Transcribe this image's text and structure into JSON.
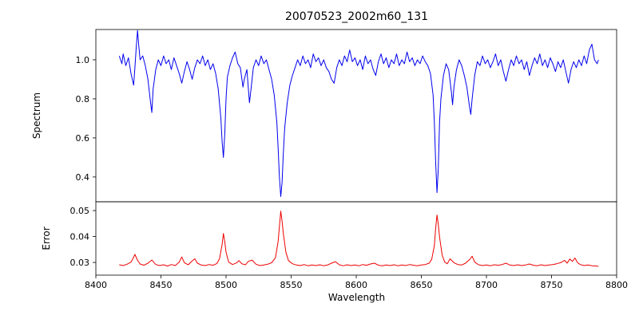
{
  "title": "20070523_2002m60_131",
  "xaxis": {
    "label": "Wavelength",
    "lim": [
      8400,
      8800
    ],
    "ticks": [
      {
        "v": 8400,
        "t": "8400"
      },
      {
        "v": 8450,
        "t": "8450"
      },
      {
        "v": 8500,
        "t": "8500"
      },
      {
        "v": 8550,
        "t": "8550"
      },
      {
        "v": 8600,
        "t": "8600"
      },
      {
        "v": 8650,
        "t": "8650"
      },
      {
        "v": 8700,
        "t": "8700"
      },
      {
        "v": 8750,
        "t": "8750"
      },
      {
        "v": 8800,
        "t": "8800"
      }
    ]
  },
  "colors": {
    "axis": "#000000",
    "background": "#ffffff"
  },
  "chart_data": [
    {
      "type": "line",
      "name": "spectrum",
      "ylabel": "Spectrum",
      "color": "#0000ee",
      "grid": false,
      "legend": "none",
      "xlim": [
        8400,
        8800
      ],
      "ylim": [
        0.273,
        1.155
      ],
      "yticks": [
        {
          "v": 0.4,
          "t": "0.4"
        },
        {
          "v": 0.6,
          "t": "0.6"
        },
        {
          "v": 0.8,
          "t": "0.8"
        },
        {
          "v": 1.0,
          "t": "1.0"
        }
      ],
      "points": [
        [
          8418,
          1.02
        ],
        [
          8420,
          0.98
        ],
        [
          8421,
          1.03
        ],
        [
          8423,
          0.97
        ],
        [
          8425,
          1.01
        ],
        [
          8427,
          0.93
        ],
        [
          8429,
          0.87
        ],
        [
          8430,
          0.96
        ],
        [
          8431,
          1.06
        ],
        [
          8432,
          1.15
        ],
        [
          8433,
          1.07
        ],
        [
          8434,
          1.0
        ],
        [
          8436,
          1.02
        ],
        [
          8438,
          0.97
        ],
        [
          8440,
          0.9
        ],
        [
          8442,
          0.78
        ],
        [
          8443,
          0.73
        ],
        [
          8444,
          0.85
        ],
        [
          8446,
          0.95
        ],
        [
          8448,
          1.0
        ],
        [
          8450,
          0.97
        ],
        [
          8452,
          1.02
        ],
        [
          8454,
          0.98
        ],
        [
          8456,
          1.0
        ],
        [
          8458,
          0.95
        ],
        [
          8460,
          1.01
        ],
        [
          8462,
          0.97
        ],
        [
          8464,
          0.93
        ],
        [
          8466,
          0.88
        ],
        [
          8468,
          0.94
        ],
        [
          8470,
          0.99
        ],
        [
          8472,
          0.95
        ],
        [
          8474,
          0.9
        ],
        [
          8476,
          0.96
        ],
        [
          8478,
          1.0
        ],
        [
          8480,
          0.98
        ],
        [
          8482,
          1.02
        ],
        [
          8484,
          0.97
        ],
        [
          8486,
          1.0
        ],
        [
          8488,
          0.95
        ],
        [
          8490,
          0.98
        ],
        [
          8492,
          0.93
        ],
        [
          8494,
          0.85
        ],
        [
          8496,
          0.7
        ],
        [
          8497,
          0.58
        ],
        [
          8498,
          0.5
        ],
        [
          8499,
          0.62
        ],
        [
          8500,
          0.8
        ],
        [
          8501,
          0.91
        ],
        [
          8503,
          0.97
        ],
        [
          8505,
          1.01
        ],
        [
          8507,
          1.04
        ],
        [
          8509,
          0.98
        ],
        [
          8511,
          0.96
        ],
        [
          8513,
          0.86
        ],
        [
          8514,
          0.9
        ],
        [
          8516,
          0.95
        ],
        [
          8518,
          0.78
        ],
        [
          8519,
          0.84
        ],
        [
          8521,
          0.96
        ],
        [
          8523,
          1.0
        ],
        [
          8525,
          0.97
        ],
        [
          8527,
          1.02
        ],
        [
          8529,
          0.98
        ],
        [
          8531,
          1.0
        ],
        [
          8533,
          0.95
        ],
        [
          8535,
          0.9
        ],
        [
          8537,
          0.82
        ],
        [
          8539,
          0.68
        ],
        [
          8540,
          0.55
        ],
        [
          8541,
          0.4
        ],
        [
          8542,
          0.3
        ],
        [
          8543,
          0.37
        ],
        [
          8544,
          0.52
        ],
        [
          8545,
          0.65
        ],
        [
          8547,
          0.78
        ],
        [
          8549,
          0.87
        ],
        [
          8551,
          0.92
        ],
        [
          8553,
          0.96
        ],
        [
          8555,
          1.0
        ],
        [
          8557,
          0.97
        ],
        [
          8559,
          1.02
        ],
        [
          8561,
          0.98
        ],
        [
          8563,
          1.0
        ],
        [
          8565,
          0.96
        ],
        [
          8567,
          1.03
        ],
        [
          8569,
          0.99
        ],
        [
          8571,
          1.01
        ],
        [
          8573,
          0.97
        ],
        [
          8575,
          1.0
        ],
        [
          8577,
          0.96
        ],
        [
          8579,
          0.94
        ],
        [
          8581,
          0.9
        ],
        [
          8583,
          0.88
        ],
        [
          8585,
          0.96
        ],
        [
          8587,
          1.0
        ],
        [
          8589,
          0.97
        ],
        [
          8591,
          1.02
        ],
        [
          8593,
          0.99
        ],
        [
          8595,
          1.05
        ],
        [
          8597,
          0.99
        ],
        [
          8599,
          1.01
        ],
        [
          8601,
          0.97
        ],
        [
          8603,
          1.0
        ],
        [
          8605,
          0.95
        ],
        [
          8607,
          1.02
        ],
        [
          8609,
          0.98
        ],
        [
          8611,
          1.0
        ],
        [
          8613,
          0.95
        ],
        [
          8615,
          0.92
        ],
        [
          8617,
          0.99
        ],
        [
          8619,
          1.03
        ],
        [
          8621,
          0.98
        ],
        [
          8623,
          1.01
        ],
        [
          8625,
          0.96
        ],
        [
          8627,
          1.0
        ],
        [
          8629,
          0.98
        ],
        [
          8631,
          1.03
        ],
        [
          8633,
          0.97
        ],
        [
          8635,
          1.0
        ],
        [
          8637,
          0.98
        ],
        [
          8639,
          1.04
        ],
        [
          8641,
          0.99
        ],
        [
          8643,
          1.01
        ],
        [
          8645,
          0.97
        ],
        [
          8647,
          1.0
        ],
        [
          8649,
          0.98
        ],
        [
          8651,
          1.02
        ],
        [
          8653,
          0.99
        ],
        [
          8655,
          0.97
        ],
        [
          8657,
          0.93
        ],
        [
          8659,
          0.82
        ],
        [
          8660,
          0.68
        ],
        [
          8661,
          0.48
        ],
        [
          8662,
          0.32
        ],
        [
          8663,
          0.44
        ],
        [
          8664,
          0.68
        ],
        [
          8665,
          0.8
        ],
        [
          8667,
          0.92
        ],
        [
          8669,
          0.98
        ],
        [
          8671,
          0.95
        ],
        [
          8673,
          0.84
        ],
        [
          8674,
          0.77
        ],
        [
          8675,
          0.86
        ],
        [
          8677,
          0.95
        ],
        [
          8679,
          1.0
        ],
        [
          8681,
          0.97
        ],
        [
          8683,
          0.92
        ],
        [
          8685,
          0.86
        ],
        [
          8687,
          0.76
        ],
        [
          8688,
          0.72
        ],
        [
          8689,
          0.8
        ],
        [
          8691,
          0.92
        ],
        [
          8693,
          0.99
        ],
        [
          8695,
          0.97
        ],
        [
          8697,
          1.02
        ],
        [
          8699,
          0.98
        ],
        [
          8701,
          1.0
        ],
        [
          8703,
          0.96
        ],
        [
          8705,
          0.99
        ],
        [
          8707,
          1.03
        ],
        [
          8709,
          0.97
        ],
        [
          8711,
          1.0
        ],
        [
          8713,
          0.94
        ],
        [
          8715,
          0.89
        ],
        [
          8717,
          0.95
        ],
        [
          8719,
          1.0
        ],
        [
          8721,
          0.97
        ],
        [
          8723,
          1.02
        ],
        [
          8725,
          0.98
        ],
        [
          8727,
          1.0
        ],
        [
          8729,
          0.95
        ],
        [
          8731,
          0.99
        ],
        [
          8733,
          0.92
        ],
        [
          8735,
          0.97
        ],
        [
          8737,
          1.01
        ],
        [
          8739,
          0.98
        ],
        [
          8741,
          1.03
        ],
        [
          8743,
          0.97
        ],
        [
          8745,
          1.0
        ],
        [
          8747,
          0.96
        ],
        [
          8749,
          1.01
        ],
        [
          8751,
          0.98
        ],
        [
          8753,
          0.94
        ],
        [
          8755,
          0.99
        ],
        [
          8757,
          0.96
        ],
        [
          8759,
          1.0
        ],
        [
          8761,
          0.94
        ],
        [
          8763,
          0.88
        ],
        [
          8765,
          0.95
        ],
        [
          8767,
          0.99
        ],
        [
          8769,
          0.96
        ],
        [
          8771,
          1.0
        ],
        [
          8773,
          0.97
        ],
        [
          8775,
          1.02
        ],
        [
          8777,
          0.98
        ],
        [
          8779,
          1.05
        ],
        [
          8781,
          1.08
        ],
        [
          8783,
          1.0
        ],
        [
          8785,
          0.98
        ],
        [
          8786,
          1.0
        ]
      ]
    },
    {
      "type": "line",
      "name": "error",
      "ylabel": "Error",
      "color": "#ee0000",
      "grid": false,
      "legend": "none",
      "xlim": [
        8400,
        8800
      ],
      "ylim": [
        0.0251,
        0.0534
      ],
      "yticks": [
        {
          "v": 0.03,
          "t": "0.03"
        },
        {
          "v": 0.04,
          "t": "0.04"
        },
        {
          "v": 0.05,
          "t": "0.05"
        }
      ],
      "points": [
        [
          8418,
          0.0291
        ],
        [
          8421,
          0.0288
        ],
        [
          8424,
          0.0293
        ],
        [
          8427,
          0.0301
        ],
        [
          8429,
          0.032
        ],
        [
          8430,
          0.0331
        ],
        [
          8432,
          0.0308
        ],
        [
          8434,
          0.0294
        ],
        [
          8437,
          0.0289
        ],
        [
          8440,
          0.0297
        ],
        [
          8443,
          0.0309
        ],
        [
          8446,
          0.0292
        ],
        [
          8449,
          0.0288
        ],
        [
          8452,
          0.0291
        ],
        [
          8455,
          0.0286
        ],
        [
          8458,
          0.0292
        ],
        [
          8461,
          0.0288
        ],
        [
          8464,
          0.0301
        ],
        [
          8466,
          0.0321
        ],
        [
          8468,
          0.0299
        ],
        [
          8471,
          0.0291
        ],
        [
          8474,
          0.0306
        ],
        [
          8476,
          0.0314
        ],
        [
          8478,
          0.0297
        ],
        [
          8481,
          0.029
        ],
        [
          8484,
          0.0288
        ],
        [
          8487,
          0.0292
        ],
        [
          8490,
          0.0289
        ],
        [
          8493,
          0.0296
        ],
        [
          8495,
          0.0315
        ],
        [
          8497,
          0.037
        ],
        [
          8498,
          0.0412
        ],
        [
          8499,
          0.038
        ],
        [
          8500,
          0.034
        ],
        [
          8502,
          0.0301
        ],
        [
          8505,
          0.0292
        ],
        [
          8508,
          0.0298
        ],
        [
          8510,
          0.0307
        ],
        [
          8512,
          0.0295
        ],
        [
          8515,
          0.0291
        ],
        [
          8517,
          0.0304
        ],
        [
          8520,
          0.0309
        ],
        [
          8523,
          0.0293
        ],
        [
          8526,
          0.0288
        ],
        [
          8529,
          0.029
        ],
        [
          8532,
          0.0293
        ],
        [
          8535,
          0.0299
        ],
        [
          8538,
          0.0318
        ],
        [
          8540,
          0.0381
        ],
        [
          8542,
          0.0498
        ],
        [
          8543,
          0.046
        ],
        [
          8544,
          0.0412
        ],
        [
          8546,
          0.0338
        ],
        [
          8548,
          0.0307
        ],
        [
          8551,
          0.0295
        ],
        [
          8554,
          0.029
        ],
        [
          8557,
          0.0288
        ],
        [
          8560,
          0.0292
        ],
        [
          8563,
          0.0287
        ],
        [
          8566,
          0.029
        ],
        [
          8569,
          0.0288
        ],
        [
          8572,
          0.0291
        ],
        [
          8575,
          0.0287
        ],
        [
          8578,
          0.029
        ],
        [
          8581,
          0.0297
        ],
        [
          8584,
          0.0303
        ],
        [
          8587,
          0.0291
        ],
        [
          8590,
          0.0287
        ],
        [
          8593,
          0.0291
        ],
        [
          8596,
          0.0288
        ],
        [
          8599,
          0.029
        ],
        [
          8602,
          0.0287
        ],
        [
          8605,
          0.0292
        ],
        [
          8608,
          0.0289
        ],
        [
          8611,
          0.0294
        ],
        [
          8614,
          0.0297
        ],
        [
          8617,
          0.0289
        ],
        [
          8620,
          0.0287
        ],
        [
          8623,
          0.029
        ],
        [
          8626,
          0.0288
        ],
        [
          8629,
          0.0291
        ],
        [
          8632,
          0.0287
        ],
        [
          8635,
          0.029
        ],
        [
          8638,
          0.0288
        ],
        [
          8641,
          0.0292
        ],
        [
          8644,
          0.0289
        ],
        [
          8647,
          0.0287
        ],
        [
          8650,
          0.029
        ],
        [
          8653,
          0.0292
        ],
        [
          8656,
          0.0297
        ],
        [
          8658,
          0.0312
        ],
        [
          8660,
          0.0365
        ],
        [
          8661,
          0.043
        ],
        [
          8662,
          0.0483
        ],
        [
          8663,
          0.0448
        ],
        [
          8664,
          0.0398
        ],
        [
          8666,
          0.0328
        ],
        [
          8668,
          0.0301
        ],
        [
          8670,
          0.0295
        ],
        [
          8672,
          0.0314
        ],
        [
          8675,
          0.0299
        ],
        [
          8678,
          0.0292
        ],
        [
          8681,
          0.029
        ],
        [
          8684,
          0.0297
        ],
        [
          8687,
          0.0311
        ],
        [
          8689,
          0.0324
        ],
        [
          8691,
          0.0301
        ],
        [
          8694,
          0.0291
        ],
        [
          8697,
          0.0288
        ],
        [
          8700,
          0.029
        ],
        [
          8703,
          0.0287
        ],
        [
          8706,
          0.0291
        ],
        [
          8709,
          0.0289
        ],
        [
          8712,
          0.0292
        ],
        [
          8715,
          0.0297
        ],
        [
          8718,
          0.029
        ],
        [
          8721,
          0.0288
        ],
        [
          8724,
          0.0291
        ],
        [
          8727,
          0.0288
        ],
        [
          8730,
          0.029
        ],
        [
          8733,
          0.0294
        ],
        [
          8736,
          0.0289
        ],
        [
          8739,
          0.0287
        ],
        [
          8742,
          0.0291
        ],
        [
          8745,
          0.0288
        ],
        [
          8748,
          0.029
        ],
        [
          8751,
          0.0292
        ],
        [
          8754,
          0.0295
        ],
        [
          8757,
          0.0299
        ],
        [
          8760,
          0.0308
        ],
        [
          8762,
          0.0297
        ],
        [
          8764,
          0.0313
        ],
        [
          8766,
          0.0304
        ],
        [
          8768,
          0.0317
        ],
        [
          8770,
          0.0299
        ],
        [
          8772,
          0.0292
        ],
        [
          8775,
          0.0288
        ],
        [
          8778,
          0.029
        ],
        [
          8781,
          0.0287
        ],
        [
          8784,
          0.0286
        ],
        [
          8786,
          0.0285
        ]
      ]
    }
  ]
}
